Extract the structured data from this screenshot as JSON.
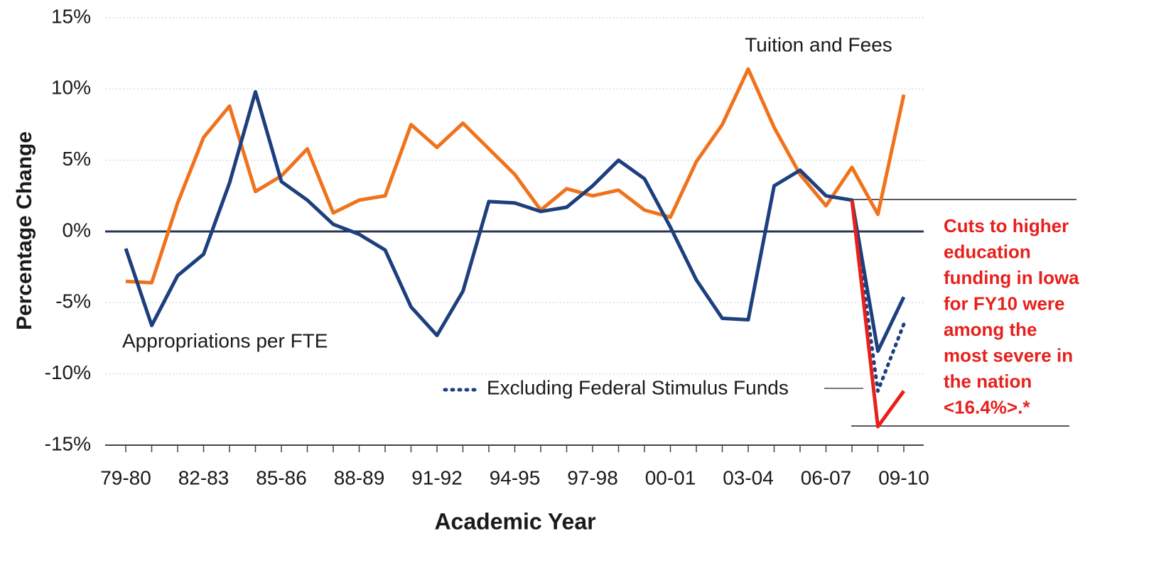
{
  "chart_data": {
    "type": "line",
    "y_label": "Percentage Change",
    "x_label": "Academic Year",
    "categories": [
      "79-80",
      null,
      null,
      "82-83",
      null,
      null,
      "85-86",
      null,
      null,
      "88-89",
      null,
      null,
      "91-92",
      null,
      null,
      "94-95",
      null,
      null,
      "97-98",
      null,
      null,
      "00-01",
      null,
      null,
      "03-04",
      null,
      null,
      "06-07",
      null,
      null,
      "09-10"
    ],
    "ylim": [
      -15,
      15
    ],
    "yticks": [
      {
        "value": -15,
        "label": "-15%"
      },
      {
        "value": -10,
        "label": "-10%"
      },
      {
        "value": -5,
        "label": "-5%"
      },
      {
        "value": 0,
        "label": "0%"
      },
      {
        "value": 5,
        "label": "5%"
      },
      {
        "value": 10,
        "label": "10%"
      },
      {
        "value": 15,
        "label": "15%"
      }
    ],
    "grid": true,
    "series": [
      {
        "name": "Tuition and Fees",
        "color": "#f0731c",
        "line_style": "solid",
        "values": [
          -3.5,
          -3.6,
          2.0,
          6.6,
          8.8,
          2.8,
          3.9,
          5.8,
          1.3,
          2.2,
          2.5,
          7.5,
          5.9,
          7.6,
          5.8,
          4.0,
          1.5,
          3.0,
          2.5,
          2.9,
          1.5,
          1.0,
          4.9,
          7.5,
          11.4,
          7.3,
          4.0,
          1.8,
          4.5,
          1.2,
          9.6
        ]
      },
      {
        "name": "Appropriations per FTE",
        "color": "#1d3f7e",
        "line_style": "solid",
        "values": [
          -1.2,
          -6.6,
          -3.1,
          -1.6,
          3.4,
          9.8,
          3.5,
          2.2,
          0.5,
          -0.2,
          -1.3,
          -5.3,
          -7.3,
          -4.2,
          2.1,
          2.0,
          1.4,
          1.7,
          3.2,
          5.0,
          3.7,
          0.3,
          -3.4,
          -6.1,
          -6.2,
          3.2,
          4.3,
          2.5,
          2.2,
          -8.4,
          -4.6
        ]
      },
      {
        "name": "Excluding Federal Stimulus Funds",
        "color": "#1d3f7e",
        "line_style": "dotted",
        "values": [
          null,
          null,
          null,
          null,
          null,
          null,
          null,
          null,
          null,
          null,
          null,
          null,
          null,
          null,
          null,
          null,
          null,
          null,
          null,
          null,
          null,
          null,
          null,
          null,
          null,
          null,
          null,
          null,
          2.2,
          -11.2,
          -6.5
        ]
      },
      {
        "color": "#e8201c",
        "line_style": "solid",
        "values": [
          null,
          null,
          null,
          null,
          null,
          null,
          null,
          null,
          null,
          null,
          null,
          null,
          null,
          null,
          null,
          null,
          null,
          null,
          null,
          null,
          null,
          null,
          null,
          null,
          null,
          null,
          null,
          null,
          2.2,
          -13.7,
          -11.2
        ]
      }
    ],
    "annotation": [
      "Cuts to higher",
      "education",
      "funding in Iowa",
      "for FY10 were",
      "among the",
      "most severe in",
      "the nation",
      "<16.4%>.*"
    ]
  }
}
